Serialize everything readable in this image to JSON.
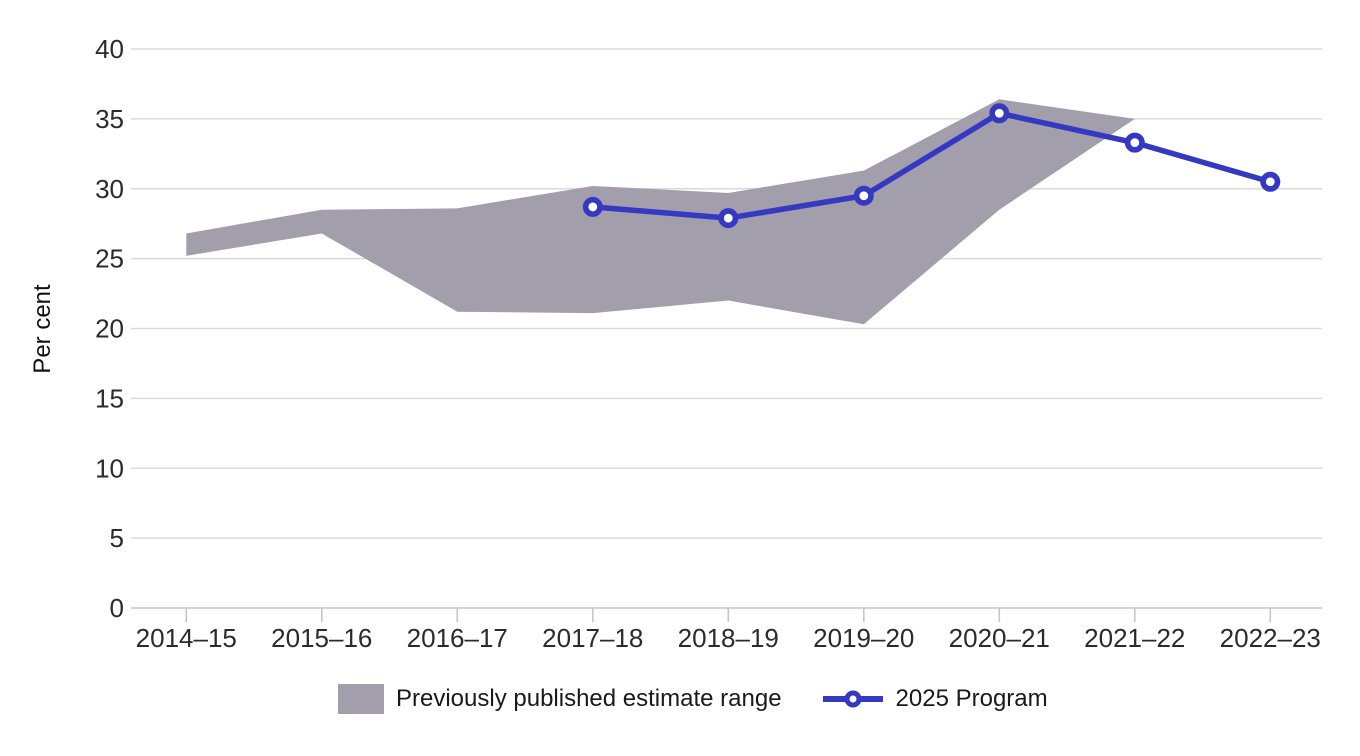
{
  "chart_data": {
    "type": "area",
    "subtype": "arearange-with-line",
    "title": "",
    "xlabel": "",
    "ylabel": "Per cent",
    "categories": [
      "2014–15",
      "2015–16",
      "2016–17",
      "2017–18",
      "2018–19",
      "2019–20",
      "2020–21",
      "2021–22",
      "2022–23"
    ],
    "y_ticks": [
      0,
      5,
      10,
      15,
      20,
      25,
      30,
      35,
      40
    ],
    "ylim": [
      0,
      40
    ],
    "grid": true,
    "legend_position": "bottom",
    "series": [
      {
        "name": "Previously published estimate range",
        "type": "arearange",
        "color": "#A29EAB",
        "upper": [
          26.8,
          28.5,
          28.6,
          30.2,
          29.7,
          31.3,
          36.4,
          35.0,
          null
        ],
        "lower": [
          25.2,
          26.8,
          21.2,
          21.1,
          22.0,
          20.3,
          28.5,
          35.0,
          null
        ]
      },
      {
        "name": "2025 Program",
        "type": "line",
        "marker": "open-circle",
        "color": "#3539C2",
        "values": [
          null,
          null,
          null,
          28.7,
          27.9,
          29.5,
          35.4,
          33.3,
          30.5
        ]
      }
    ],
    "colors": {
      "gridline": "#DADADA",
      "axis": "#C6C6C6",
      "tick_label": "#2B2B2B",
      "legend_text": "#1A1A1A"
    }
  }
}
